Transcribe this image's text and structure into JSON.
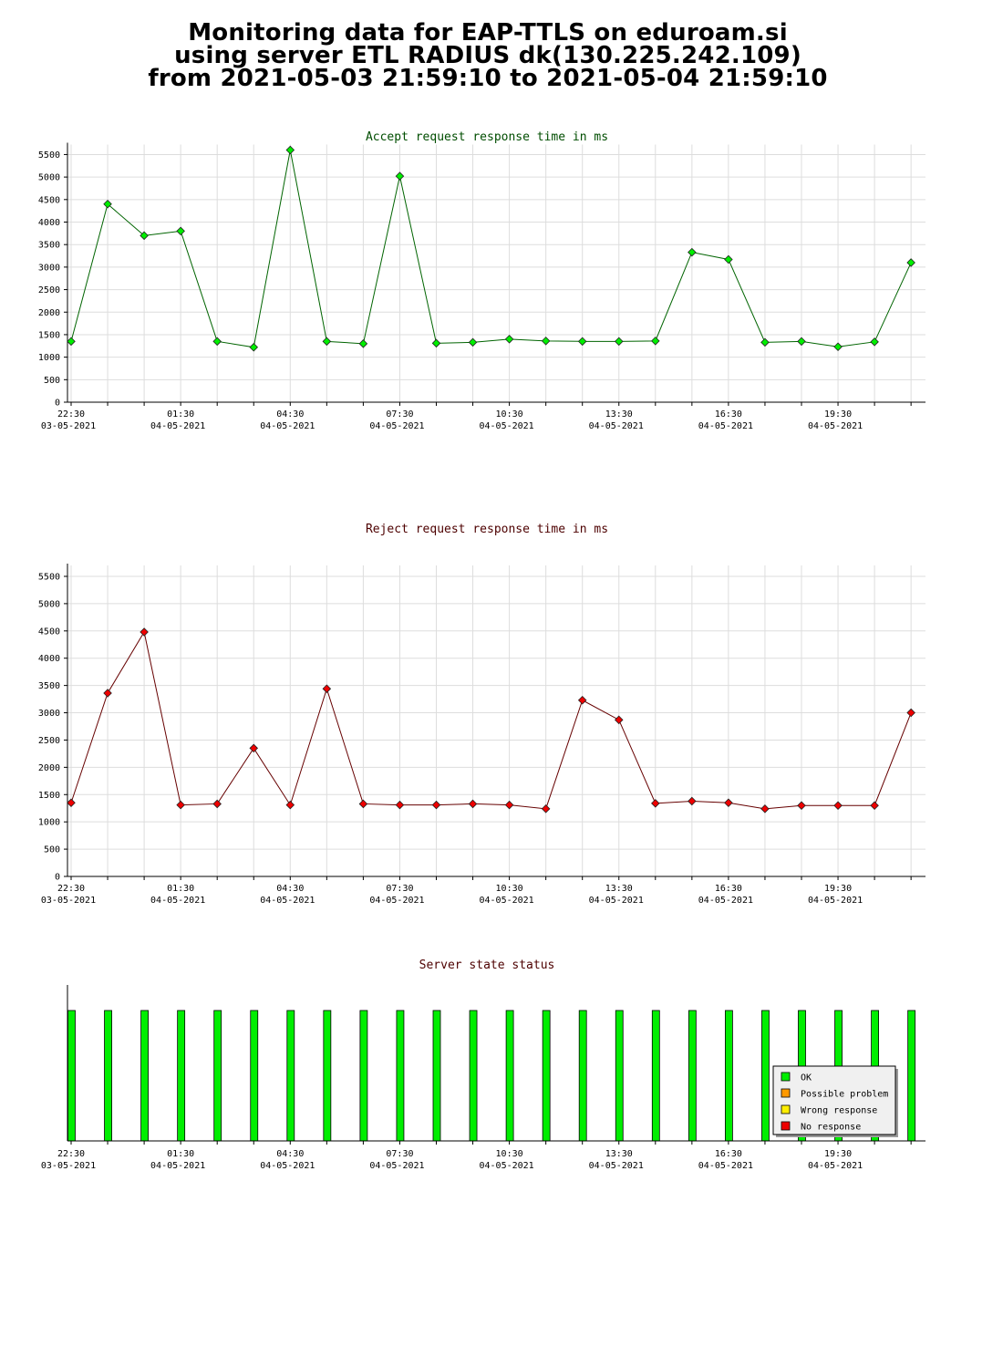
{
  "header": {
    "line1": "Monitoring data for EAP-TTLS on eduroam.si",
    "line2": "using server ETL RADIUS dk(130.225.242.109)",
    "line3": "from 2021-05-03 21:59:10 to 2021-05-04 21:59:10"
  },
  "colors": {
    "accept": "#00ee00",
    "accept_line": "#006400",
    "reject": "#ee0000",
    "reject_line": "#660000",
    "title_accept": "#004d00",
    "title_reject": "#4d0000"
  },
  "x_ticks": [
    {
      "time": "22:30",
      "date": "03-05-2021"
    },
    {
      "time": "01:30",
      "date": "04-05-2021"
    },
    {
      "time": "04:30",
      "date": "04-05-2021"
    },
    {
      "time": "07:30",
      "date": "04-05-2021"
    },
    {
      "time": "10:30",
      "date": "04-05-2021"
    },
    {
      "time": "13:30",
      "date": "04-05-2021"
    },
    {
      "time": "16:30",
      "date": "04-05-2021"
    },
    {
      "time": "19:30",
      "date": "04-05-2021"
    }
  ],
  "chart_data": [
    {
      "type": "line",
      "title": "Accept request response time in ms",
      "ylim": [
        0,
        5600
      ],
      "yticks": [
        0,
        500,
        1000,
        1500,
        2000,
        2500,
        3000,
        3500,
        4000,
        4500,
        5000,
        5500
      ],
      "grid": true,
      "series": [
        {
          "values": [
            1350,
            4400,
            3700,
            3800,
            1350,
            1220,
            5600,
            1350,
            1300,
            5020,
            1310,
            1330,
            1400,
            1360,
            1350,
            1350,
            1360,
            3330,
            3170,
            1330,
            1350,
            1230,
            1340,
            3100
          ]
        }
      ]
    },
    {
      "type": "line",
      "title": "Reject request response time in ms",
      "ylim": [
        0,
        5600
      ],
      "yticks": [
        0,
        500,
        1000,
        1500,
        2000,
        2500,
        3000,
        3500,
        4000,
        4500,
        5000,
        5500
      ],
      "grid": true,
      "series": [
        {
          "values": [
            1350,
            3360,
            4480,
            1310,
            1330,
            2350,
            1310,
            3440,
            1330,
            1310,
            1310,
            1330,
            1310,
            1240,
            3230,
            2870,
            1340,
            1380,
            1350,
            1240,
            1300,
            1300,
            1300,
            3000
          ]
        }
      ]
    },
    {
      "type": "bar",
      "title": "Server state status",
      "legend": [
        "OK",
        "Possible problem",
        "Wrong response",
        "No response"
      ],
      "legend_colors": [
        "#00ee00",
        "#ff9900",
        "#ffee00",
        "#ee0000"
      ],
      "legend_position": "bottom-right",
      "states": [
        "OK",
        "OK",
        "OK",
        "OK",
        "OK",
        "OK",
        "OK",
        "OK",
        "OK",
        "OK",
        "OK",
        "OK",
        "OK",
        "OK",
        "OK",
        "OK",
        "OK",
        "OK",
        "OK",
        "OK",
        "OK",
        "OK",
        "OK",
        "OK"
      ]
    }
  ]
}
